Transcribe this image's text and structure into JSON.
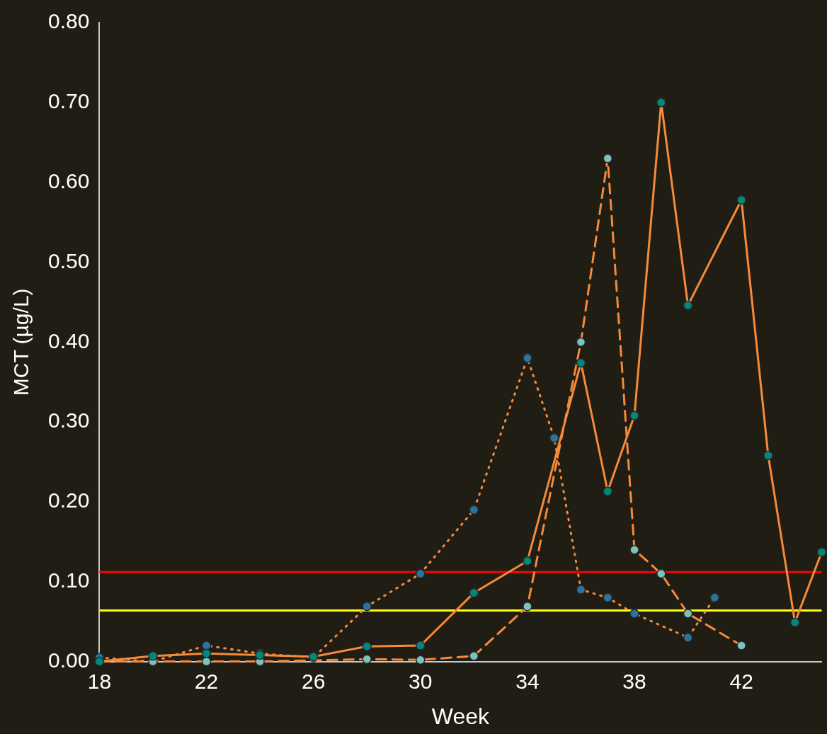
{
  "chart_data": {
    "type": "line",
    "xlabel": "Week",
    "ylabel": "MCT (µg/L)",
    "xlim": [
      18,
      45
    ],
    "xticks": [
      18,
      22,
      26,
      30,
      34,
      38,
      42
    ],
    "ylim": [
      0,
      0.8
    ],
    "yticks": [
      {
        "value": 0,
        "label": "0.00"
      },
      {
        "value": 0.1,
        "label": "0.10"
      },
      {
        "value": 0.2,
        "label": "0.20"
      },
      {
        "value": 0.3,
        "label": "0.30"
      },
      {
        "value": 0.4,
        "label": "0.40"
      },
      {
        "value": 0.5,
        "label": "0.50"
      },
      {
        "value": 0.6,
        "label": "0.60"
      },
      {
        "value": 0.7,
        "label": "0.70"
      },
      {
        "value": 0.8,
        "label": "0.80"
      }
    ],
    "grid": false,
    "legend": false,
    "marker": "circle",
    "series": [
      {
        "color": "#f58a3c",
        "line_style": "dotted",
        "x": [
          18,
          20,
          22,
          24,
          26,
          28,
          30,
          32,
          34,
          35,
          36,
          37,
          38,
          40,
          41
        ],
        "values": [
          0.005,
          0.0,
          0.02,
          0.01,
          0.005,
          0.069,
          0.11,
          0.19,
          0.38,
          0.28,
          0.09,
          0.08,
          0.06,
          0.03,
          0.08
        ],
        "colors": [
          "#2a74a0",
          "#2a74a0",
          "#2a74a0",
          "#2a74a0",
          "#2a74a0",
          "#2a74a0",
          "#2a74a0",
          "#2a74a0",
          "#2a74a0",
          "#2a74a0",
          "#2a74a0",
          "#2a74a0",
          "#2a74a0",
          "#2a74a0",
          "#2a74a0"
        ]
      },
      {
        "color": "#f58a3c",
        "line_style": "dashed",
        "x": [
          18,
          20,
          22,
          24,
          26,
          28,
          30,
          32,
          34,
          36,
          37,
          38,
          39,
          40,
          42
        ],
        "values": [
          0.0,
          0.0,
          0.0,
          0.0,
          null,
          0.003,
          0.002,
          0.007,
          0.069,
          0.4,
          0.63,
          0.14,
          0.11,
          0.06,
          0.02
        ],
        "colors": [
          "#7ac4bb",
          "#7ac4bb",
          "#7ac4bb",
          "#7ac4bb",
          "#7ac4bb",
          "#7ac4bb",
          "#7ac4bb",
          "#7ac4bb",
          "#7ac4bb",
          "#7ac4bb",
          "#7ac4bb",
          "#7ac4bb",
          "#7ac4bb",
          "#7ac4bb",
          "#7ac4bb"
        ]
      },
      {
        "color": "#f58a3c",
        "line_style": "solid",
        "x": [
          18,
          20,
          22,
          24,
          26,
          28,
          30,
          32,
          34,
          36,
          37,
          38,
          39,
          40,
          42,
          43,
          44,
          45
        ],
        "values": [
          0.0,
          0.007,
          0.01,
          0.008,
          0.006,
          0.019,
          0.02,
          0.086,
          0.126,
          0.374,
          0.213,
          0.308,
          0.7,
          0.446,
          0.578,
          0.258,
          0.049,
          0.137
        ],
        "colors": [
          "#00897b",
          "#00897b",
          "#00897b",
          "#00897b",
          "#00897b",
          "#00897b",
          "#00897b",
          "#00897b",
          "#00897b",
          "#00897b",
          "#00897b",
          "#00897b",
          "#00897b",
          "#00897b",
          "#00897b",
          "#00897b",
          "#00897b",
          "#00897b"
        ]
      }
    ],
    "ref_lines": [
      {
        "axis": "y",
        "value": 0.112,
        "color": "#ff0000"
      },
      {
        "axis": "y",
        "value": 0.064,
        "color": "#ffff00"
      }
    ]
  }
}
